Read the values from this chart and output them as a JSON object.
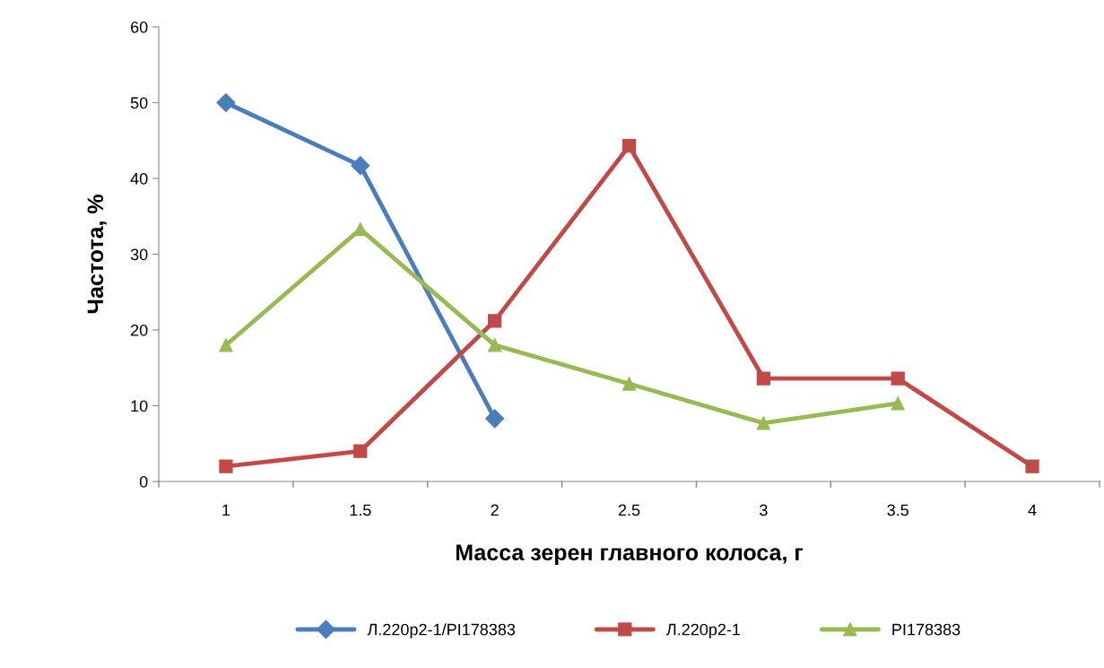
{
  "chart_data": {
    "type": "line",
    "xlabel": "Масса зерен главного колоса, г",
    "ylabel": "Частота, %",
    "categories": [
      "1",
      "1.5",
      "2",
      "2.5",
      "3",
      "3.5",
      "4"
    ],
    "series": [
      {
        "name": "Л.220р2-1/PI178383",
        "color": "#4a7ebb",
        "marker": "diamond",
        "values": [
          50,
          41.7,
          8.3,
          null,
          null,
          null,
          null
        ]
      },
      {
        "name": "Л.220р2-1",
        "color": "#be4b48",
        "marker": "square",
        "values": [
          2,
          4,
          21.2,
          44.3,
          13.6,
          13.6,
          2
        ]
      },
      {
        "name": "PI178383",
        "color": "#98b954",
        "marker": "triangle",
        "values": [
          18,
          33.3,
          18,
          12.9,
          7.7,
          10.3,
          null
        ]
      }
    ],
    "ylim": [
      0,
      60
    ],
    "yticks": [
      0,
      10,
      20,
      30,
      40,
      50,
      60
    ],
    "grid": false,
    "legend": "bottom",
    "line_style": "solid"
  }
}
